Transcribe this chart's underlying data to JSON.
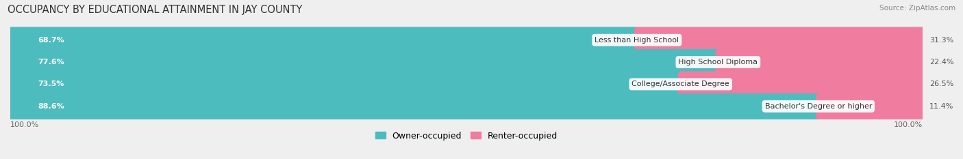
{
  "title": "OCCUPANCY BY EDUCATIONAL ATTAINMENT IN JAY COUNTY",
  "source": "Source: ZipAtlas.com",
  "categories": [
    "Less than High School",
    "High School Diploma",
    "College/Associate Degree",
    "Bachelor's Degree or higher"
  ],
  "owner_values": [
    68.7,
    77.6,
    73.5,
    88.6
  ],
  "renter_values": [
    31.3,
    22.4,
    26.5,
    11.4
  ],
  "owner_color": "#4dbcbf",
  "renter_color": "#f07ca0",
  "background_color": "#efefef",
  "bar_bg_color": "#e0dede",
  "bar_height": 0.58,
  "title_fontsize": 10.5,
  "label_fontsize": 8.0,
  "cat_fontsize": 8.0,
  "tick_fontsize": 8.0,
  "legend_fontsize": 9.0,
  "x_left_label": "100.0%",
  "x_right_label": "100.0%"
}
